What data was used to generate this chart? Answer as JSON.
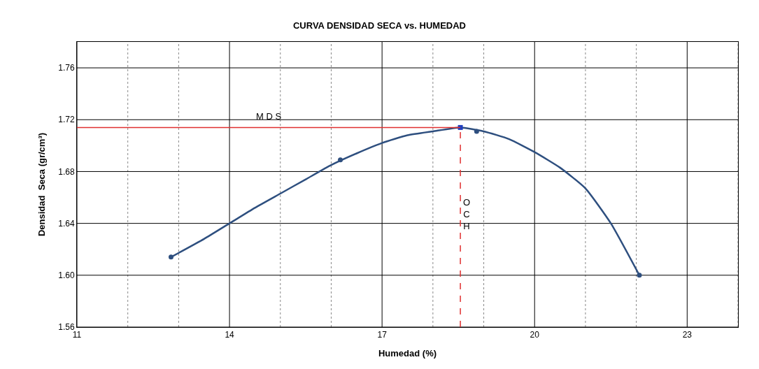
{
  "chart_data": {
    "type": "line",
    "title": "CURVA DENSIDAD SECA vs. HUMEDAD",
    "xlabel": "Humedad (%)",
    "ylabel": "Densidad  Seca (gr/cm³)",
    "xlim": [
      11,
      24
    ],
    "ylim": [
      1.56,
      1.78
    ],
    "xticks": [
      11,
      {
        "value": 12,
        "label": null
      },
      {
        "value": 13,
        "label": null
      },
      14,
      {
        "value": 15,
        "label": null
      },
      {
        "value": 16,
        "label": null
      },
      17,
      {
        "value": 18,
        "label": null
      },
      {
        "value": 19,
        "label": null
      },
      20,
      {
        "value": 21,
        "label": null
      },
      {
        "value": 22,
        "label": null
      },
      23,
      {
        "value": 24,
        "label": null
      }
    ],
    "yticks": [
      {
        "value": 1.56,
        "label": "1.56"
      },
      {
        "value": 1.6,
        "label": "1.60"
      },
      {
        "value": 1.64,
        "label": "1.64"
      },
      {
        "value": 1.68,
        "label": "1.68"
      },
      {
        "value": 1.72,
        "label": "1.72"
      },
      {
        "value": 1.76,
        "label": "1.76"
      }
    ],
    "grid": true,
    "series": [
      {
        "color": "#2e4f7f",
        "marker": "none",
        "x": [
          12.85,
          13.5,
          14,
          14.5,
          15,
          15.5,
          16,
          16.5,
          17,
          17.5,
          18,
          18.54,
          19,
          19.5,
          20,
          20.5,
          21,
          21.5,
          22.06
        ],
        "values": [
          1.614,
          1.628,
          1.64,
          1.652,
          1.663,
          1.674,
          1.685,
          1.694,
          1.702,
          1.708,
          1.711,
          1.714,
          1.711,
          1.705,
          1.695,
          1.683,
          1.667,
          1.64,
          1.6
        ]
      },
      {
        "type": "scatter",
        "color": "#2e4f7f",
        "marker": "circle",
        "x": [
          12.85,
          16.18,
          18.86,
          22.06
        ],
        "values": [
          1.614,
          1.689,
          1.711,
          1.6
        ]
      },
      {
        "type": "scatter",
        "color": "#1f3fbf",
        "marker": "square",
        "x": [
          18.54
        ],
        "values": [
          1.714
        ]
      }
    ],
    "ref_lines": [
      {
        "axis": "y",
        "value": 1.714,
        "label": "M D S",
        "color": "#e03030",
        "line_style": "solid"
      },
      {
        "axis": "x",
        "value": 18.54,
        "label": "O C H",
        "color": "#e03030",
        "line_style": "dashed"
      }
    ]
  }
}
